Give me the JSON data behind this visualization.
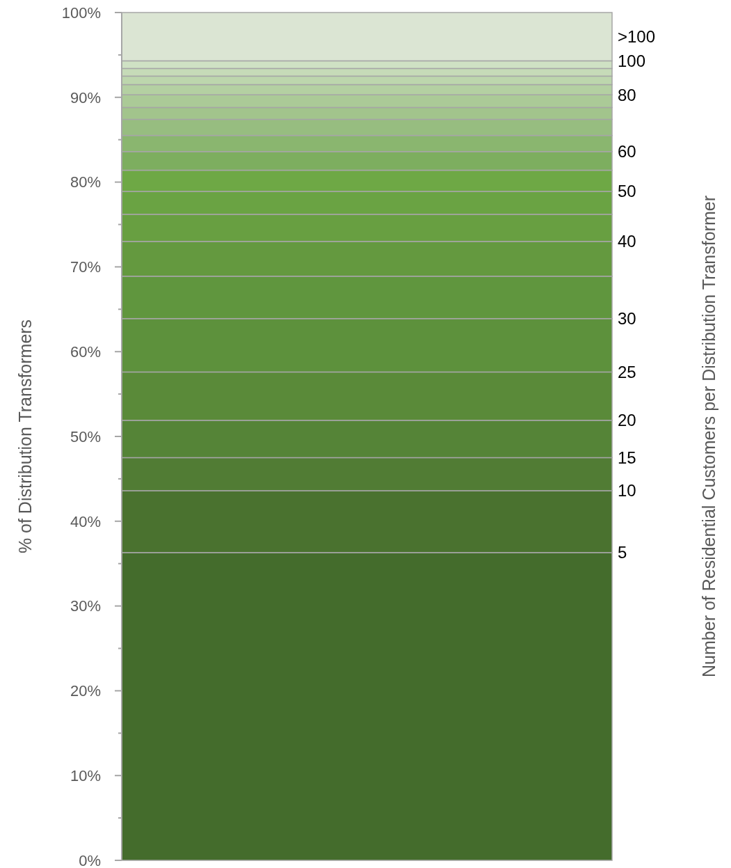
{
  "chart_data": {
    "type": "bar",
    "stacked": true,
    "ylabel": "% of Distribution Transformers",
    "y2label": "Number of Residential Customers per Distribution Transformer",
    "categories": [
      null
    ],
    "ylim": [
      0,
      100
    ],
    "yticks": [
      {
        "value": 0,
        "label": "0%"
      },
      {
        "value": 5,
        "label": null
      },
      {
        "value": 10,
        "label": "10%"
      },
      {
        "value": 15,
        "label": null
      },
      {
        "value": 20,
        "label": "20%"
      },
      {
        "value": 25,
        "label": null
      },
      {
        "value": 30,
        "label": "30%"
      },
      {
        "value": 35,
        "label": null
      },
      {
        "value": 40,
        "label": "40%"
      },
      {
        "value": 45,
        "label": null
      },
      {
        "value": 50,
        "label": "50%"
      },
      {
        "value": 55,
        "label": null
      },
      {
        "value": 60,
        "label": "60%"
      },
      {
        "value": 65,
        "label": null
      },
      {
        "value": 70,
        "label": "70%"
      },
      {
        "value": 75,
        "label": null
      },
      {
        "value": 80,
        "label": "80%"
      },
      {
        "value": 85,
        "label": null
      },
      {
        "value": 90,
        "label": "90%"
      },
      {
        "value": 95,
        "label": null
      },
      {
        "value": 100,
        "label": "100%"
      }
    ],
    "series": [
      {
        "name": "5",
        "color": "#446c2c",
        "values": [
          36.3
        ]
      },
      {
        "name": "10",
        "color": "#4a722f",
        "values": [
          7.3
        ]
      },
      {
        "name": "15",
        "color": "#517c34",
        "values": [
          3.9
        ]
      },
      {
        "name": "20",
        "color": "#558437",
        "values": [
          4.4
        ]
      },
      {
        "name": "25",
        "color": "#5a8a39",
        "values": [
          5.7
        ]
      },
      {
        "name": "30",
        "color": "#5d913c",
        "values": [
          6.3
        ]
      },
      {
        "color": "#60963e",
        "values": [
          5.0
        ]
      },
      {
        "name": "40",
        "color": "#64993f",
        "values": [
          4.1
        ]
      },
      {
        "color": "#689f41",
        "values": [
          3.2
        ]
      },
      {
        "name": "50",
        "color": "#6aa343",
        "values": [
          2.7
        ]
      },
      {
        "color": "#6ea845",
        "values": [
          2.5
        ]
      },
      {
        "name": "60",
        "color": "#7dae5f",
        "values": [
          2.2
        ]
      },
      {
        "color": "#8ab66f",
        "values": [
          1.9
        ]
      },
      {
        "color": "#97bd80",
        "values": [
          1.9
        ]
      },
      {
        "color": "#a2c48c",
        "values": [
          1.4
        ]
      },
      {
        "name": "80",
        "color": "#abca97",
        "values": [
          1.5
        ]
      },
      {
        "color": "#b4d0a2",
        "values": [
          1.2
        ]
      },
      {
        "color": "#bdd6ad",
        "values": [
          1.0
        ]
      },
      {
        "color": "#c6dbb8",
        "values": [
          0.9
        ]
      },
      {
        "name": "100",
        "color": "#cfe1c4",
        "values": [
          0.9
        ]
      },
      {
        "name": ">100",
        "color": "#dbe5d3",
        "values": [
          5.7
        ]
      }
    ]
  }
}
